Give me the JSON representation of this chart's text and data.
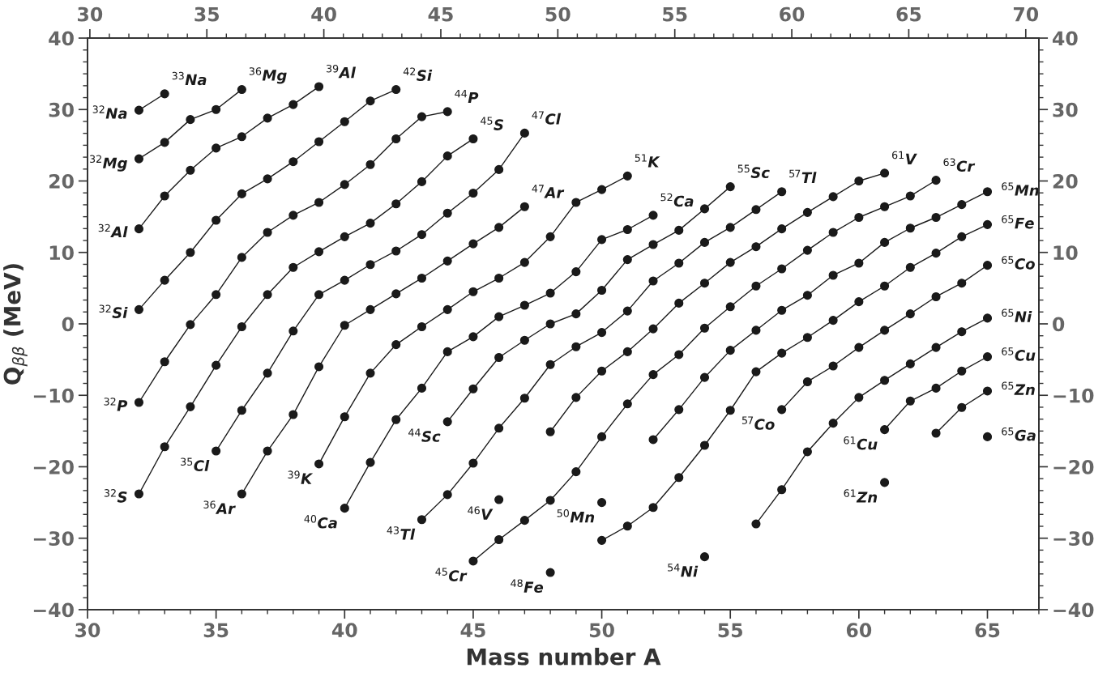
{
  "chart_data": {
    "type": "line",
    "xlabel": "Mass number A",
    "ylabel": "Q$_{ββ}$ (MeV)",
    "xlim": [
      30,
      67
    ],
    "xticks": [
      30,
      35,
      40,
      45,
      50,
      55,
      60,
      65
    ],
    "x2lim": [
      29.9,
      70.56
    ],
    "x2ticks": [
      30,
      35,
      40,
      45,
      50,
      55,
      60,
      65,
      70
    ],
    "ylim": [
      -40,
      40
    ],
    "yticks": [
      -40,
      -30,
      -20,
      -10,
      0,
      10,
      20,
      30,
      40
    ],
    "y2lim": [
      -40,
      40
    ],
    "y2ticks": [
      -40,
      -30,
      -20,
      -10,
      0,
      10,
      20,
      30,
      40
    ],
    "marker": "circle",
    "line_style": "solid",
    "series": [
      {
        "color": "#1a1a1a",
        "x": [
          32,
          33
        ],
        "values": [
          29.9,
          32.2
        ]
      },
      {
        "color": "#1a1a1a",
        "x": [
          32,
          33,
          34,
          35,
          36
        ],
        "values": [
          23.1,
          25.4,
          28.6,
          30.0,
          32.8
        ]
      },
      {
        "color": "#1a1a1a",
        "x": [
          32,
          33,
          34,
          35,
          36,
          37,
          38,
          39
        ],
        "values": [
          13.3,
          17.9,
          21.5,
          24.6,
          26.2,
          28.8,
          30.7,
          33.2
        ]
      },
      {
        "color": "#1a1a1a",
        "x": [
          32,
          33,
          34,
          35,
          36,
          37,
          38,
          39,
          40,
          41,
          42
        ],
        "values": [
          2.0,
          6.1,
          10.0,
          14.5,
          18.2,
          20.3,
          22.7,
          25.5,
          28.3,
          31.2,
          32.8
        ]
      },
      {
        "color": "#1a1a1a",
        "x": [
          32,
          33,
          34,
          35,
          36,
          37,
          38,
          39,
          40,
          41,
          42,
          43,
          44
        ],
        "values": [
          -11.0,
          -5.3,
          -0.1,
          4.1,
          9.3,
          12.8,
          15.2,
          17.0,
          19.5,
          22.3,
          25.9,
          29.0,
          29.7
        ]
      },
      {
        "color": "#1a1a1a",
        "x": [
          32,
          33,
          34,
          35,
          36,
          37,
          38,
          39,
          40,
          41,
          42,
          43,
          44,
          45
        ],
        "values": [
          -23.8,
          -17.2,
          -11.6,
          -5.8,
          -0.4,
          4.1,
          7.9,
          10.1,
          12.2,
          14.1,
          16.8,
          19.9,
          23.5,
          25.9
        ]
      },
      {
        "color": "#1a1a1a",
        "x": [
          35,
          36,
          37,
          38,
          39,
          40,
          41,
          42,
          43,
          44,
          45,
          46,
          47
        ],
        "values": [
          -17.8,
          -12.1,
          -6.9,
          -1.0,
          4.1,
          6.1,
          8.3,
          10.2,
          12.5,
          15.5,
          18.3,
          21.6,
          26.7
        ]
      },
      {
        "color": "#1a1a1a",
        "x": [
          36,
          37,
          38,
          39,
          40,
          41,
          42,
          43,
          44,
          45,
          46,
          47
        ],
        "values": [
          -23.8,
          -17.8,
          -12.7,
          -6.0,
          -0.2,
          2.0,
          4.2,
          6.4,
          8.8,
          11.2,
          13.5,
          16.4
        ]
      },
      {
        "color": "#1a1a1a",
        "x": [
          39,
          40,
          41,
          42,
          43,
          44,
          45,
          46,
          47,
          48,
          49,
          50,
          51
        ],
        "values": [
          -19.6,
          -13.0,
          -6.9,
          -2.9,
          -0.4,
          2.0,
          4.5,
          6.4,
          8.6,
          12.2,
          17.0,
          18.8,
          20.7
        ]
      },
      {
        "color": "#1a1a1a",
        "x": [
          40,
          41,
          42,
          43,
          44,
          45,
          46,
          47,
          48,
          49,
          50,
          51,
          52
        ],
        "values": [
          -25.8,
          -19.4,
          -13.4,
          -9.0,
          -3.9,
          -1.8,
          1.0,
          2.6,
          4.3,
          7.3,
          11.8,
          13.2,
          15.2
        ]
      },
      {
        "color": "#1a1a1a",
        "x": [
          43,
          44,
          45,
          46,
          47,
          48,
          49,
          50,
          51,
          52,
          53,
          54,
          55,
          56,
          57
        ],
        "values": [
          -27.4,
          -23.9,
          -19.5,
          -14.6,
          -10.4,
          -5.7,
          -3.2,
          -1.2,
          1.8,
          6.0,
          8.5,
          11.4,
          13.5,
          16.0,
          18.5
        ]
      },
      {
        "color": "#1a1a1a",
        "x": [
          44,
          45,
          46,
          47,
          48,
          49,
          50,
          51,
          52,
          53,
          54,
          55
        ],
        "values": [
          -13.7,
          -9.1,
          -4.7,
          -2.3,
          0.0,
          1.4,
          4.7,
          9.0,
          11.1,
          13.1,
          16.1,
          19.2
        ]
      },
      {
        "color": "#1a1a1a",
        "x": [
          45,
          46,
          47,
          48,
          49,
          50,
          51,
          52,
          53,
          54,
          55,
          56,
          57,
          58,
          59,
          60,
          61,
          62,
          63
        ],
        "values": [
          -33.2,
          -30.2,
          -27.5,
          -24.7,
          -20.7,
          -15.8,
          -11.2,
          -7.1,
          -4.3,
          -0.6,
          2.4,
          5.3,
          7.7,
          10.3,
          12.8,
          14.9,
          16.4,
          17.9,
          20.1
        ]
      },
      {
        "color": "#1a1a1a",
        "x": [
          46
        ],
        "values": [
          -24.6
        ]
      },
      {
        "color": "#1a1a1a",
        "x": [
          48,
          49,
          50,
          51,
          52,
          53,
          54,
          55,
          56,
          57,
          58,
          59,
          60,
          61
        ],
        "values": [
          -15.1,
          -10.3,
          -6.6,
          -3.9,
          -0.7,
          2.9,
          5.7,
          8.6,
          10.8,
          13.3,
          15.6,
          17.8,
          20.0,
          21.1
        ]
      },
      {
        "color": "#1a1a1a",
        "x": [
          48
        ],
        "values": [
          -34.8
        ]
      },
      {
        "color": "#1a1a1a",
        "x": [
          50
        ],
        "values": [
          -25.0
        ]
      },
      {
        "color": "#1a1a1a",
        "x": [
          50,
          51,
          52,
          53,
          54,
          55,
          56,
          57,
          58,
          59,
          60,
          61,
          62,
          63,
          64,
          65
        ],
        "values": [
          -30.3,
          -28.3,
          -25.7,
          -21.5,
          -17.0,
          -12.1,
          -6.7,
          -4.1,
          -1.9,
          0.5,
          3.1,
          5.3,
          7.9,
          9.9,
          12.2,
          13.9
        ]
      },
      {
        "color": "#1a1a1a",
        "x": [
          52,
          53,
          54,
          55,
          56,
          57,
          58,
          59,
          60,
          61,
          62,
          63,
          64,
          65
        ],
        "values": [
          -16.2,
          -12.0,
          -7.5,
          -3.7,
          -0.9,
          1.9,
          4.0,
          6.8,
          8.5,
          11.4,
          13.4,
          14.9,
          16.7,
          18.5
        ]
      },
      {
        "color": "#1a1a1a",
        "x": [
          54
        ],
        "values": [
          -32.6
        ]
      },
      {
        "color": "#1a1a1a",
        "x": [
          56,
          57,
          58,
          59,
          60,
          61,
          62,
          63,
          64,
          65
        ],
        "values": [
          -28.0,
          -23.2,
          -17.9,
          -13.9,
          -10.3,
          -7.9,
          -5.6,
          -3.3,
          -1.1,
          0.8
        ]
      },
      {
        "color": "#1a1a1a",
        "x": [
          57,
          58,
          59,
          60,
          61,
          62,
          63,
          64,
          65
        ],
        "values": [
          -12.0,
          -8.1,
          -5.9,
          -3.3,
          -0.9,
          1.4,
          3.8,
          5.7,
          8.2
        ]
      },
      {
        "color": "#1a1a1a",
        "x": [
          61,
          62,
          63,
          64,
          65
        ],
        "values": [
          -14.8,
          -10.8,
          -9.0,
          -6.6,
          -4.6
        ]
      },
      {
        "color": "#1a1a1a",
        "x": [
          61
        ],
        "values": [
          -22.2
        ]
      },
      {
        "color": "#1a1a1a",
        "x": [
          63,
          64,
          65
        ],
        "values": [
          -15.3,
          -11.7,
          -9.4
        ]
      },
      {
        "color": "#1a1a1a",
        "x": [
          65
        ],
        "values": [
          -15.8
        ]
      }
    ],
    "annotations": [
      {
        "text": "$^{32}$Na",
        "x": 32,
        "y": 29.9
      },
      {
        "text": "$^{33}$Na",
        "x": 33,
        "y": 32.2
      },
      {
        "text": "$^{32}$Mg",
        "x": 32,
        "y": 23.1
      },
      {
        "text": "$^{36}$Mg",
        "x": 36,
        "y": 32.8
      },
      {
        "text": "$^{32}$Al",
        "x": 32,
        "y": 13.3
      },
      {
        "text": "$^{39}$Al",
        "x": 39,
        "y": 33.2
      },
      {
        "text": "$^{32}$Si",
        "x": 32,
        "y": 2.0
      },
      {
        "text": "$^{42}$Si",
        "x": 42,
        "y": 32.8
      },
      {
        "text": "$^{32}$P",
        "x": 32,
        "y": -11.0
      },
      {
        "text": "$^{44}$P",
        "x": 44,
        "y": 29.7
      },
      {
        "text": "$^{32}$S",
        "x": 32,
        "y": -23.8
      },
      {
        "text": "$^{45}$S",
        "x": 45,
        "y": 25.9
      },
      {
        "text": "$^{35}$Cl",
        "x": 35,
        "y": -17.8
      },
      {
        "text": "$^{47}$Cl",
        "x": 47,
        "y": 26.7
      },
      {
        "text": "$^{36}$Ar",
        "x": 36,
        "y": -23.8
      },
      {
        "text": "$^{47}$Ar",
        "x": 47,
        "y": 16.4
      },
      {
        "text": "$^{39}$K",
        "x": 39,
        "y": -19.6
      },
      {
        "text": "$^{51}$K",
        "x": 51,
        "y": 20.7
      },
      {
        "text": "$^{40}$Ca",
        "x": 40,
        "y": -25.8
      },
      {
        "text": "$^{52}$Ca",
        "x": 52,
        "y": 15.2
      },
      {
        "text": "$^{43}$Tl",
        "x": 43,
        "y": -27.4
      },
      {
        "text": "$^{57}$Tl",
        "x": 57,
        "y": 18.5
      },
      {
        "text": "$^{44}$Sc",
        "x": 44,
        "y": -13.7
      },
      {
        "text": "$^{55}$Sc",
        "x": 55,
        "y": 19.2
      },
      {
        "text": "$^{45}$Cr",
        "x": 45,
        "y": -33.2
      },
      {
        "text": "$^{63}$Cr",
        "x": 63,
        "y": 20.1
      },
      {
        "text": "$^{46}$V",
        "x": 46,
        "y": -24.6
      },
      {
        "text": "$^{61}$V",
        "x": 61,
        "y": 21.1
      },
      {
        "text": "$^{48}$Fe",
        "x": 48,
        "y": -34.8
      },
      {
        "text": "$^{50}$Mn",
        "x": 50,
        "y": -25.0
      },
      {
        "text": "$^{65}$Mn",
        "x": 65,
        "y": 18.5
      },
      {
        "text": "$^{65}$Fe",
        "x": 65,
        "y": 13.9
      },
      {
        "text": "$^{54}$Ni",
        "x": 54,
        "y": -32.6
      },
      {
        "text": "$^{57}$Co",
        "x": 57,
        "y": -12.0
      },
      {
        "text": "$^{65}$Co",
        "x": 65,
        "y": 8.2
      },
      {
        "text": "$^{65}$Ni",
        "x": 65,
        "y": 0.8
      },
      {
        "text": "$^{61}$Cu",
        "x": 61,
        "y": -14.8
      },
      {
        "text": "$^{65}$Cu",
        "x": 65,
        "y": -4.6
      },
      {
        "text": "$^{61}$Zn",
        "x": 61,
        "y": -22.2
      },
      {
        "text": "$^{65}$Zn",
        "x": 65,
        "y": -9.4
      },
      {
        "text": "$^{65}$Ga",
        "x": 65,
        "y": -15.8
      }
    ]
  }
}
